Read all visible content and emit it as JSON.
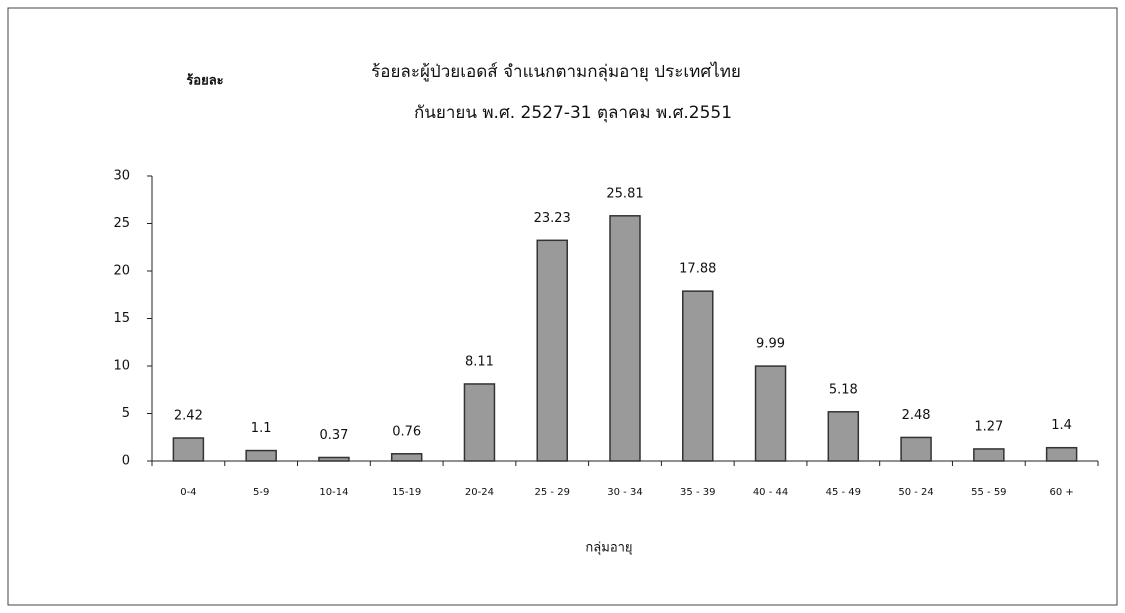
{
  "chart_data": {
    "type": "bar",
    "title": "ร้อยละผู้ป่วยเอดส์ จำแนกตามกลุ่มอายุ ประเทศไทย",
    "subtitle": "กันยายน พ.ศ. 2527-31 ตุลาคม พ.ศ.2551",
    "ylabel": "ร้อยละ",
    "xlabel": "กลุ่มอายุ",
    "categories": [
      "0-4",
      "5-9",
      "10-14",
      "15-19",
      "20-24",
      "25 - 29",
      "30 - 34",
      "35 - 39",
      "40 - 44",
      "45 - 49",
      "50 - 24",
      "55 - 59",
      "60 +"
    ],
    "values": [
      2.42,
      1.1,
      0.37,
      0.76,
      8.11,
      23.23,
      25.81,
      17.88,
      9.99,
      5.18,
      2.48,
      1.27,
      1.4
    ],
    "color": "#9a9a9a",
    "ylim": [
      0,
      30
    ],
    "yticks": [
      0,
      5,
      10,
      15,
      20,
      25,
      30
    ],
    "grid": false
  }
}
